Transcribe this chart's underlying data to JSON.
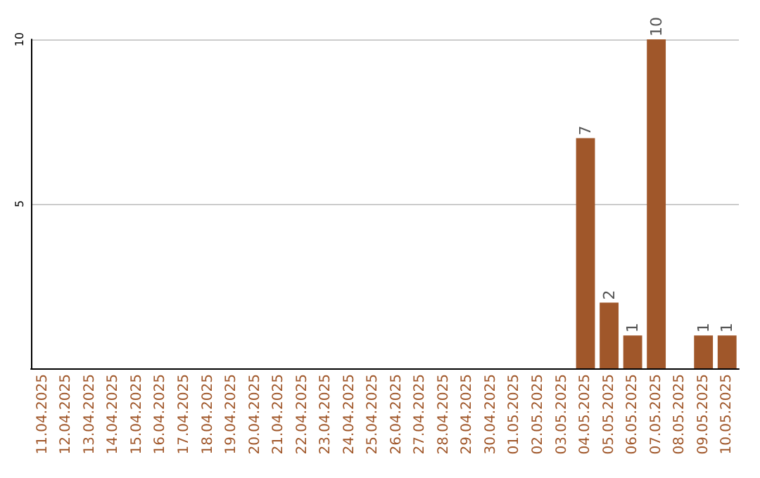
{
  "chart_data": {
    "type": "bar",
    "categories": [
      "11.04.2025",
      "12.04.2025",
      "13.04.2025",
      "14.04.2025",
      "15.04.2025",
      "16.04.2025",
      "17.04.2025",
      "18.04.2025",
      "19.04.2025",
      "20.04.2025",
      "21.04.2025",
      "22.04.2025",
      "23.04.2025",
      "24.04.2025",
      "25.04.2025",
      "26.04.2025",
      "27.04.2025",
      "28.04.2025",
      "29.04.2025",
      "30.04.2025",
      "01.05.2025",
      "02.05.2025",
      "03.05.2025",
      "04.05.2025",
      "05.05.2025",
      "06.05.2025",
      "07.05.2025",
      "08.05.2025",
      "09.05.2025",
      "10.05.2025"
    ],
    "values": [
      0,
      0,
      0,
      0,
      0,
      0,
      0,
      0,
      0,
      0,
      0,
      0,
      0,
      0,
      0,
      0,
      0,
      0,
      0,
      0,
      0,
      0,
      0,
      7,
      2,
      1,
      10,
      0,
      1,
      1
    ],
    "value_labels": [
      null,
      null,
      null,
      null,
      null,
      null,
      null,
      null,
      null,
      null,
      null,
      null,
      null,
      null,
      null,
      null,
      null,
      null,
      null,
      null,
      null,
      null,
      null,
      "7",
      "2",
      "1",
      "10",
      null,
      "1",
      "1"
    ],
    "color": "#a0572a",
    "ylim": [
      0,
      10
    ],
    "yticks": [
      5,
      10
    ],
    "grid": "y"
  }
}
